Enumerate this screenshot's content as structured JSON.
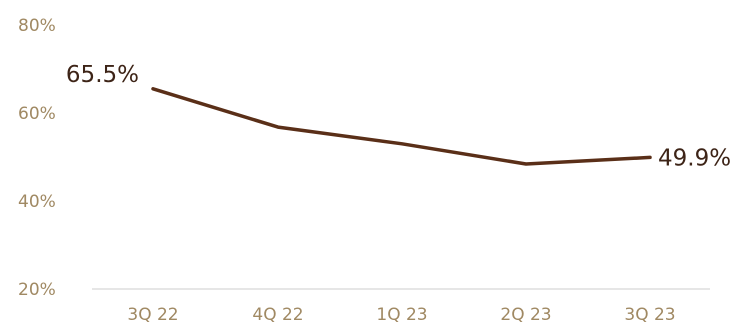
{
  "chart_data": {
    "type": "line",
    "title": "",
    "xlabel": "",
    "ylabel": "",
    "categories": [
      "3Q 22",
      "4Q 22",
      "1Q 23",
      "2Q 23",
      "3Q 23"
    ],
    "series": [
      {
        "values": [
          65.5,
          56.8,
          53.0,
          48.4,
          49.9
        ]
      }
    ],
    "ylim": [
      20,
      80
    ],
    "yticks": [
      20,
      40,
      60,
      80
    ],
    "ytick_labels": [
      "20%",
      "40%",
      "60%",
      "80%"
    ],
    "data_labels": [
      {
        "index": 0,
        "text": "65.5%"
      },
      {
        "index": 4,
        "text": "49.9%"
      }
    ],
    "grid": false,
    "colors": {
      "line": "#5a2f18",
      "ticks": "#a08963",
      "axis": "#cccccc",
      "labels": "#3d2417"
    }
  }
}
